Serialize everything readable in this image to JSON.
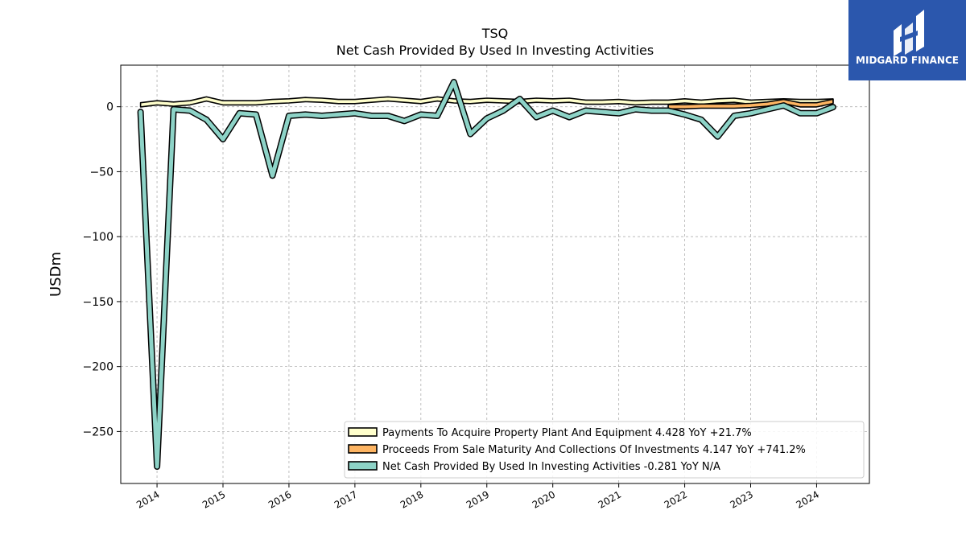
{
  "brand": {
    "name": "MIDGARD FINANCE",
    "color": "#2b57ad"
  },
  "chart_data": {
    "type": "area",
    "title": "TSQ",
    "subtitle": "Net Cash Provided By Used In Investing Activities",
    "ylabel": "USDm",
    "xlabel": "",
    "ylim": [
      -290,
      32
    ],
    "xlim": [
      2013.45,
      2024.8
    ],
    "yticks": [
      0,
      -50,
      -100,
      -150,
      -200,
      -250
    ],
    "ytick_labels": [
      "0",
      "−50",
      "−100",
      "−150",
      "−200",
      "−250"
    ],
    "xticks": [
      2014,
      2015,
      2016,
      2017,
      2018,
      2019,
      2020,
      2021,
      2022,
      2023,
      2024
    ],
    "xtick_labels": [
      "2014",
      "2015",
      "2016",
      "2017",
      "2018",
      "2019",
      "2020",
      "2021",
      "2022",
      "2023",
      "2024"
    ],
    "grid": true,
    "legend_position": "lower-right",
    "series": [
      {
        "name": "Payments To Acquire Property Plant And Equipment",
        "legend": "Payments To Acquire Property Plant And Equipment  4.428 YoY +21.7%",
        "color": "#ffffcc",
        "style": "band",
        "x": [
          2013.75,
          2014.0,
          2014.25,
          2014.5,
          2014.75,
          2015.0,
          2015.25,
          2015.5,
          2015.75,
          2016.0,
          2016.25,
          2016.5,
          2016.75,
          2017.0,
          2017.25,
          2017.5,
          2017.75,
          2018.0,
          2018.25,
          2018.5,
          2018.75,
          2019.0,
          2019.25,
          2019.5,
          2019.75,
          2020.0,
          2020.25,
          2020.5,
          2020.75,
          2021.0,
          2021.25,
          2021.5,
          2021.75,
          2022.0,
          2022.25,
          2022.5,
          2022.75,
          2023.0,
          2023.25,
          2023.5,
          2023.75,
          2024.0,
          2024.25
        ],
        "values": [
          1.5,
          3.0,
          2.0,
          3.0,
          6.0,
          3.0,
          3.0,
          3.0,
          4.0,
          4.5,
          5.5,
          5.0,
          4.0,
          4.0,
          5.0,
          6.0,
          5.0,
          4.0,
          6.0,
          4.5,
          4.0,
          5.0,
          4.5,
          4.0,
          5.0,
          4.5,
          5.0,
          3.5,
          3.5,
          4.0,
          3.0,
          3.5,
          3.5,
          4.5,
          3.5,
          4.5,
          5.0,
          3.5,
          4.0,
          4.5,
          4.0,
          4.0,
          4.428
        ]
      },
      {
        "name": "Proceeds From Sale Maturity And Collections Of Investments",
        "legend": "Proceeds From Sale Maturity And Collections Of Investments  4.147 YoY +741.2%",
        "color": "#fdb462",
        "style": "band",
        "x": [
          2021.75,
          2022.0,
          2022.25,
          2022.5,
          2022.75,
          2023.0,
          2023.25,
          2023.5,
          2023.75,
          2024.0,
          2024.25
        ],
        "values": [
          0.0,
          0.0,
          0.5,
          0.5,
          0.5,
          1.0,
          2.0,
          4.0,
          1.5,
          1.5,
          4.147
        ]
      },
      {
        "name": "Net Cash Provided By Used In Investing Activities",
        "legend": "Net Cash Provided By Used In Investing Activities  -0.281 YoY N/A",
        "color": "#8dd3c7",
        "style": "line",
        "x": [
          2013.75,
          2014.0,
          2014.25,
          2014.5,
          2014.75,
          2015.0,
          2015.25,
          2015.5,
          2015.75,
          2016.0,
          2016.25,
          2016.5,
          2016.75,
          2017.0,
          2017.25,
          2017.5,
          2017.75,
          2018.0,
          2018.25,
          2018.5,
          2018.75,
          2019.0,
          2019.25,
          2019.5,
          2019.75,
          2020.0,
          2020.25,
          2020.5,
          2020.75,
          2021.0,
          2021.25,
          2021.5,
          2021.75,
          2022.0,
          2022.25,
          2022.5,
          2022.75,
          2023.0,
          2023.25,
          2023.5,
          2023.75,
          2024.0,
          2024.25
        ],
        "values": [
          -4,
          -277,
          -2,
          -3,
          -10,
          -25,
          -5,
          -6,
          -53,
          -7,
          -6,
          -7,
          -6,
          -5,
          -7,
          -7,
          -11,
          -6,
          -7,
          19,
          -21,
          -9,
          -3,
          6,
          -8,
          -3,
          -8,
          -3,
          -4,
          -5,
          -2,
          -3,
          -3,
          -6,
          -10,
          -23,
          -7,
          -5,
          -2,
          1,
          -5,
          -5,
          -0.281
        ]
      }
    ]
  }
}
